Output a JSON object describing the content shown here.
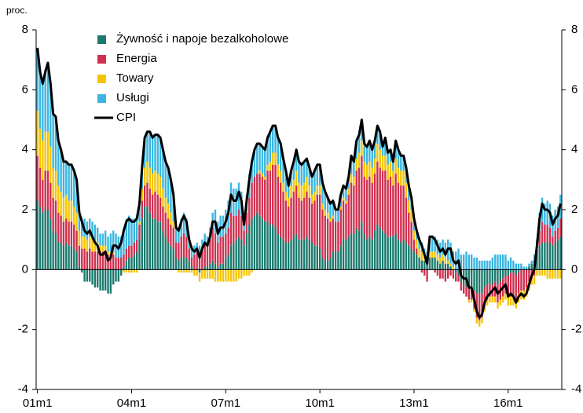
{
  "chart_data": {
    "type": "stacked-bar-line",
    "y_label": "proc.",
    "categories": [
      "01m1",
      null,
      null,
      null,
      null,
      null,
      null,
      null,
      null,
      null,
      null,
      null,
      null,
      null,
      null,
      null,
      null,
      null,
      null,
      null,
      null,
      null,
      null,
      null,
      null,
      null,
      null,
      null,
      null,
      null,
      null,
      null,
      null,
      null,
      null,
      null,
      "04m1",
      null,
      null,
      null,
      null,
      null,
      null,
      null,
      null,
      null,
      null,
      null,
      null,
      null,
      null,
      null,
      null,
      null,
      null,
      null,
      null,
      null,
      null,
      null,
      null,
      null,
      null,
      null,
      null,
      null,
      null,
      null,
      null,
      null,
      null,
      null,
      "07m1",
      null,
      null,
      null,
      null,
      null,
      null,
      null,
      null,
      null,
      null,
      null,
      null,
      null,
      null,
      null,
      null,
      null,
      null,
      null,
      null,
      null,
      null,
      null,
      null,
      null,
      null,
      null,
      null,
      null,
      null,
      null,
      null,
      null,
      null,
      null,
      "10m1",
      null,
      null,
      null,
      null,
      null,
      null,
      null,
      null,
      null,
      null,
      null,
      null,
      null,
      null,
      null,
      null,
      null,
      null,
      null,
      null,
      null,
      null,
      null,
      null,
      null,
      null,
      null,
      null,
      null,
      null,
      null,
      null,
      null,
      null,
      null,
      "13m1",
      null,
      null,
      null,
      null,
      null,
      null,
      null,
      null,
      null,
      null,
      null,
      null,
      null,
      null,
      null,
      null,
      null,
      null,
      null,
      null,
      null,
      null,
      null,
      null,
      null,
      null,
      null,
      null,
      null,
      null,
      null,
      null,
      null,
      null,
      null,
      "16m1",
      null,
      null,
      null,
      null,
      null,
      null,
      null,
      null,
      null,
      null,
      null,
      null,
      null,
      null,
      null,
      null,
      null,
      null,
      null,
      null
    ],
    "series": [
      {
        "name": "Żywność i napoje bezalkoholowe",
        "color": "#1a7a6e",
        "values": [
          2.3,
          2.1,
          1.9,
          2.0,
          2.0,
          1.7,
          1.3,
          1.2,
          0.9,
          0.9,
          0.8,
          0.9,
          0.8,
          0.8,
          0.7,
          0.6,
          0.1,
          -0.1,
          -0.4,
          -0.4,
          -0.4,
          -0.5,
          -0.6,
          -0.6,
          -0.7,
          -0.7,
          -0.7,
          -0.8,
          -0.8,
          -0.5,
          -0.4,
          -0.4,
          -0.2,
          0.1,
          0.3,
          0.4,
          0.4,
          0.5,
          0.6,
          1.0,
          1.7,
          2.1,
          2.1,
          1.9,
          1.7,
          1.7,
          1.6,
          1.6,
          1.3,
          1.1,
          0.9,
          0.8,
          0.7,
          0.4,
          0.3,
          0.4,
          0.4,
          0.4,
          0.3,
          0.1,
          0.0,
          0.0,
          -0.1,
          0.0,
          0.1,
          0.1,
          0.2,
          0.3,
          0.2,
          0.1,
          0.2,
          0.2,
          0.4,
          0.5,
          0.8,
          0.9,
          1.0,
          1.1,
          1.0,
          0.8,
          1.2,
          1.5,
          1.7,
          1.8,
          1.9,
          1.8,
          1.7,
          1.6,
          1.6,
          1.5,
          1.5,
          1.4,
          1.2,
          1.1,
          1.0,
          0.9,
          0.9,
          1.0,
          1.1,
          1.2,
          1.0,
          1.0,
          1.0,
          1.1,
          1.0,
          0.9,
          0.8,
          0.8,
          0.7,
          0.4,
          0.3,
          0.3,
          0.4,
          0.6,
          0.6,
          0.6,
          0.8,
          1.0,
          1.0,
          1.1,
          1.2,
          1.2,
          1.4,
          1.3,
          1.6,
          1.2,
          1.0,
          1.1,
          1.0,
          1.3,
          1.5,
          1.4,
          1.3,
          1.2,
          1.1,
          1.1,
          1.1,
          1.2,
          1.0,
          0.9,
          1.0,
          0.9,
          0.8,
          0.7,
          0.6,
          0.5,
          0.4,
          0.3,
          0.3,
          0.2,
          0.4,
          0.4,
          0.4,
          0.3,
          0.2,
          0.3,
          0.2,
          0.2,
          0.1,
          0.0,
          -0.1,
          -0.2,
          -0.4,
          -0.5,
          -0.6,
          -0.6,
          -0.6,
          -0.7,
          -0.8,
          -0.8,
          -0.8,
          -0.6,
          -0.5,
          -0.5,
          -0.5,
          -0.4,
          -0.5,
          -0.4,
          -0.3,
          -0.2,
          -0.2,
          -0.1,
          -0.1,
          -0.2,
          -0.1,
          0.0,
          0.0,
          0.0,
          0.1,
          0.2,
          0.3,
          0.5,
          0.8,
          0.9,
          0.9,
          0.9,
          0.9,
          0.8,
          0.9,
          1.0,
          1.1
        ]
      },
      {
        "name": "Energia",
        "color": "#d0304f",
        "values": [
          1.5,
          1.3,
          1.1,
          1.3,
          1.3,
          1.2,
          1.1,
          1.1,
          1.0,
          0.9,
          0.8,
          0.8,
          0.8,
          0.8,
          0.8,
          0.7,
          0.7,
          0.7,
          0.7,
          0.6,
          0.7,
          0.6,
          0.6,
          0.6,
          0.6,
          0.6,
          0.6,
          0.5,
          0.5,
          0.5,
          0.4,
          0.4,
          0.4,
          0.4,
          0.4,
          0.4,
          0.4,
          0.4,
          0.4,
          0.5,
          0.6,
          0.7,
          0.8,
          0.8,
          0.8,
          0.9,
          0.9,
          0.8,
          0.8,
          0.8,
          0.8,
          0.7,
          0.7,
          0.5,
          0.6,
          0.7,
          0.8,
          0.7,
          0.4,
          0.3,
          0.5,
          0.6,
          0.5,
          0.7,
          0.8,
          0.7,
          0.8,
          1.1,
          1.0,
          0.8,
          0.9,
          0.9,
          0.8,
          0.9,
          1.1,
          0.9,
          0.8,
          0.9,
          0.8,
          0.5,
          0.7,
          0.9,
          1.2,
          1.3,
          1.3,
          1.4,
          1.4,
          1.4,
          1.7,
          1.8,
          2.0,
          2.1,
          1.9,
          1.8,
          1.6,
          1.4,
          1.2,
          1.4,
          1.5,
          1.6,
          1.4,
          1.3,
          1.4,
          1.5,
          1.4,
          1.3,
          1.5,
          1.7,
          1.8,
          1.6,
          1.5,
          1.4,
          1.2,
          1.1,
          1.0,
          1.0,
          1.2,
          1.3,
          1.2,
          1.4,
          1.7,
          1.6,
          1.9,
          2.1,
          2.2,
          1.9,
          2.0,
          2.0,
          1.9,
          1.9,
          2.1,
          2.0,
          2.0,
          2.1,
          1.9,
          2.0,
          1.7,
          2.0,
          1.9,
          1.9,
          1.8,
          1.5,
          1.1,
          0.9,
          0.4,
          0.2,
          0.0,
          -0.1,
          -0.2,
          -0.4,
          0.0,
          0.0,
          -0.1,
          -0.2,
          -0.3,
          -0.3,
          -0.4,
          -0.3,
          -0.2,
          -0.3,
          -0.3,
          -0.2,
          -0.3,
          -0.3,
          -0.3,
          -0.4,
          -0.4,
          -0.6,
          -0.8,
          -0.9,
          -0.8,
          -0.6,
          -0.5,
          -0.4,
          -0.4,
          -0.5,
          -0.6,
          -0.6,
          -0.6,
          -0.6,
          -0.7,
          -0.8,
          -0.8,
          -0.8,
          -0.7,
          -0.7,
          -0.7,
          -0.6,
          -0.4,
          -0.3,
          -0.2,
          0.1,
          0.5,
          0.7,
          0.6,
          0.6,
          0.5,
          0.3,
          0.4,
          0.4,
          0.6
        ]
      },
      {
        "name": "Towary",
        "color": "#f5c400",
        "values": [
          1.5,
          1.3,
          1.3,
          1.3,
          1.3,
          1.2,
          1.0,
          1.0,
          0.9,
          0.8,
          0.8,
          0.8,
          0.7,
          0.7,
          0.6,
          0.6,
          0.5,
          0.4,
          0.4,
          0.4,
          0.4,
          0.4,
          0.3,
          0.3,
          0.2,
          0.2,
          0.2,
          0.1,
          0.1,
          0.1,
          0.0,
          0.0,
          0.0,
          -0.1,
          -0.1,
          -0.1,
          -0.1,
          -0.1,
          -0.1,
          0.1,
          0.4,
          0.6,
          0.7,
          0.7,
          0.7,
          0.7,
          0.7,
          0.7,
          0.6,
          0.5,
          0.5,
          0.4,
          0.2,
          0.0,
          -0.1,
          -0.1,
          -0.1,
          -0.1,
          -0.1,
          -0.1,
          -0.2,
          -0.2,
          -0.3,
          -0.3,
          -0.3,
          -0.3,
          -0.3,
          -0.3,
          -0.4,
          -0.4,
          -0.4,
          -0.4,
          -0.4,
          -0.4,
          -0.4,
          -0.4,
          -0.4,
          -0.3,
          -0.3,
          -0.2,
          -0.2,
          -0.2,
          -0.1,
          0.0,
          0.0,
          0.1,
          0.1,
          0.1,
          0.2,
          0.3,
          0.4,
          0.4,
          0.4,
          0.4,
          0.3,
          0.3,
          0.3,
          0.4,
          0.4,
          0.5,
          0.5,
          0.5,
          0.5,
          0.5,
          0.4,
          0.3,
          0.3,
          0.3,
          0.3,
          0.2,
          0.2,
          0.2,
          0.1,
          0.1,
          0.0,
          0.0,
          0.1,
          0.1,
          0.1,
          0.2,
          0.3,
          0.3,
          0.4,
          0.5,
          0.5,
          0.5,
          0.5,
          0.5,
          0.5,
          0.5,
          0.6,
          0.6,
          0.5,
          0.5,
          0.5,
          0.5,
          0.5,
          0.5,
          0.5,
          0.5,
          0.5,
          0.5,
          0.4,
          0.4,
          0.3,
          0.3,
          0.3,
          0.3,
          0.2,
          0.2,
          0.2,
          0.2,
          0.2,
          0.2,
          0.2,
          0.2,
          0.2,
          0.1,
          0.1,
          0.1,
          0.0,
          0.0,
          0.0,
          0.0,
          0.0,
          -0.1,
          -0.1,
          -0.1,
          -0.2,
          -0.2,
          -0.2,
          -0.2,
          -0.2,
          -0.2,
          -0.2,
          -0.2,
          -0.2,
          -0.2,
          -0.2,
          -0.2,
          -0.3,
          -0.3,
          -0.3,
          -0.3,
          -0.3,
          -0.3,
          -0.3,
          -0.3,
          -0.3,
          -0.2,
          -0.3,
          -0.2,
          -0.2,
          -0.2,
          -0.2,
          -0.3,
          -0.3,
          -0.3,
          -0.3,
          -0.3,
          -0.3
        ]
      },
      {
        "name": "Usługi",
        "color": "#3ab6e0",
        "values": [
          2.1,
          1.9,
          1.9,
          2.0,
          2.3,
          2.1,
          1.8,
          1.8,
          1.5,
          1.4,
          1.2,
          1.1,
          1.2,
          1.2,
          1.2,
          1.1,
          0.6,
          0.6,
          0.6,
          0.6,
          0.6,
          0.6,
          0.6,
          0.5,
          0.4,
          0.4,
          0.5,
          0.5,
          0.6,
          0.7,
          0.8,
          0.7,
          0.7,
          0.9,
          1.0,
          1.0,
          0.9,
          0.8,
          0.8,
          0.6,
          0.7,
          1.0,
          1.0,
          1.2,
          1.2,
          1.2,
          1.3,
          1.3,
          1.3,
          1.2,
          1.2,
          1.1,
          0.9,
          0.5,
          0.5,
          0.6,
          0.7,
          0.6,
          0.4,
          0.4,
          0.3,
          0.3,
          0.3,
          0.3,
          0.3,
          0.3,
          0.4,
          0.5,
          0.8,
          0.7,
          0.7,
          0.7,
          0.8,
          0.9,
          1.0,
          0.9,
          0.9,
          0.9,
          0.8,
          0.4,
          0.6,
          0.8,
          0.8,
          0.9,
          1.0,
          0.9,
          0.9,
          0.9,
          0.9,
          1.0,
          0.9,
          0.9,
          0.9,
          0.9,
          0.8,
          0.7,
          0.4,
          0.5,
          0.6,
          0.7,
          0.7,
          0.7,
          0.7,
          0.6,
          0.6,
          0.6,
          0.7,
          0.7,
          0.7,
          0.7,
          0.6,
          0.5,
          0.5,
          0.5,
          0.4,
          0.4,
          0.4,
          0.4,
          0.4,
          0.4,
          0.6,
          0.5,
          0.6,
          0.6,
          0.7,
          0.6,
          0.6,
          0.7,
          0.6,
          0.6,
          0.6,
          0.6,
          0.3,
          0.6,
          0.4,
          0.4,
          0.3,
          0.6,
          0.6,
          0.5,
          0.5,
          0.5,
          0.5,
          0.4,
          0.4,
          0.3,
          0.3,
          0.3,
          0.2,
          0.2,
          0.5,
          0.5,
          0.5,
          0.5,
          0.5,
          0.5,
          0.5,
          0.7,
          0.7,
          0.5,
          0.6,
          0.7,
          0.5,
          0.5,
          0.6,
          0.5,
          0.5,
          0.4,
          0.4,
          0.3,
          0.3,
          0.3,
          0.3,
          0.3,
          0.4,
          0.5,
          0.5,
          0.5,
          0.5,
          0.5,
          0.3,
          0.4,
          0.3,
          0.2,
          0.2,
          0.2,
          0.1,
          0.1,
          0.1,
          0.1,
          0.2,
          0.4,
          0.6,
          0.8,
          0.7,
          0.8,
          0.8,
          0.7,
          0.7,
          0.7,
          0.8
        ]
      },
      {
        "name": "CPI",
        "color": "#000000",
        "line": true,
        "values": [
          7.4,
          6.6,
          6.2,
          6.6,
          6.9,
          6.2,
          5.2,
          5.1,
          4.3,
          4.0,
          3.6,
          3.6,
          3.5,
          3.5,
          3.3,
          3.0,
          1.9,
          1.6,
          1.3,
          1.2,
          1.3,
          1.1,
          0.9,
          0.8,
          0.5,
          0.5,
          0.6,
          0.3,
          0.4,
          0.8,
          0.8,
          0.7,
          0.9,
          1.3,
          1.6,
          1.7,
          1.6,
          1.6,
          1.7,
          2.2,
          3.4,
          4.4,
          4.6,
          4.6,
          4.4,
          4.5,
          4.5,
          4.4,
          4.0,
          3.6,
          3.4,
          3.0,
          2.5,
          1.4,
          1.3,
          1.6,
          1.8,
          1.6,
          1.0,
          0.7,
          0.6,
          0.7,
          0.4,
          0.7,
          0.9,
          0.8,
          1.1,
          1.6,
          1.6,
          1.2,
          1.4,
          1.4,
          1.6,
          1.9,
          2.5,
          2.3,
          2.3,
          2.6,
          2.3,
          1.5,
          2.3,
          3.0,
          3.6,
          4.0,
          4.2,
          4.2,
          4.1,
          4.0,
          4.4,
          4.6,
          4.8,
          4.8,
          4.4,
          4.2,
          3.7,
          3.3,
          2.8,
          3.3,
          3.6,
          4.0,
          3.6,
          3.5,
          3.6,
          3.7,
          3.4,
          3.1,
          3.3,
          3.5,
          3.5,
          2.9,
          2.6,
          2.4,
          2.2,
          2.3,
          2.0,
          2.0,
          2.5,
          2.8,
          2.7,
          3.1,
          3.8,
          3.6,
          4.3,
          4.5,
          5.0,
          4.2,
          4.1,
          4.3,
          4.0,
          4.3,
          4.8,
          4.6,
          4.1,
          4.4,
          3.9,
          4.0,
          3.6,
          4.3,
          4.0,
          3.8,
          3.8,
          3.4,
          2.8,
          2.4,
          1.7,
          1.3,
          1.0,
          0.8,
          0.5,
          0.2,
          1.1,
          1.1,
          1.0,
          0.8,
          0.6,
          0.7,
          0.5,
          0.7,
          0.7,
          0.3,
          0.2,
          0.3,
          -0.2,
          -0.3,
          -0.3,
          -0.6,
          -0.6,
          -1.0,
          -1.4,
          -1.6,
          -1.5,
          -1.1,
          -0.9,
          -0.8,
          -0.7,
          -0.6,
          -0.8,
          -0.7,
          -0.6,
          -0.5,
          -0.9,
          -0.8,
          -0.9,
          -1.1,
          -0.9,
          -0.8,
          -0.9,
          -0.8,
          -0.5,
          -0.2,
          0.0,
          0.8,
          1.7,
          2.2,
          2.0,
          2.0,
          1.9,
          1.5,
          1.7,
          1.8,
          2.2
        ]
      }
    ],
    "ylim": [
      -4,
      8
    ],
    "yticks": [
      -4,
      -2,
      0,
      2,
      4,
      6,
      8
    ],
    "y2lim": [
      -4,
      8
    ],
    "y2ticks": [
      -4,
      -2,
      0,
      2,
      4,
      6,
      8
    ],
    "legend": "top-left"
  }
}
